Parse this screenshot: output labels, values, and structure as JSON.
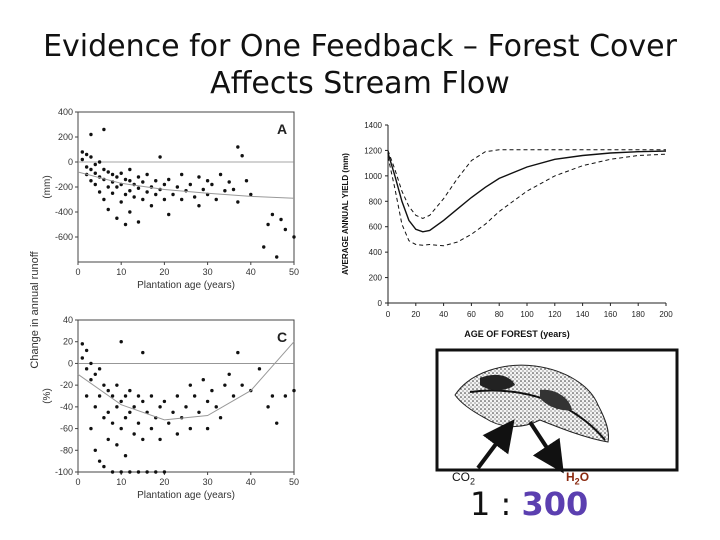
{
  "slide": {
    "title_line1": "Evidence for One Feedback – Forest Cover",
    "title_line2": "Affects Stream Flow"
  },
  "leaf": {
    "co2_label": "CO",
    "co2_sub": "2",
    "h2o_label_h": "H",
    "h2o_sub": "2",
    "h2o_label_o": "O",
    "ratio_left": "1 : ",
    "ratio_right": "300"
  },
  "chart_data": [
    {
      "type": "scatter",
      "panel_label": "A",
      "xlabel": "Plantation age (years)",
      "ylabel": "(mm)",
      "shared_ylabel": "Change in annual runoff",
      "xlim": [
        0,
        50
      ],
      "ylim": [
        -800,
        400
      ],
      "xticks": [
        0,
        10,
        20,
        30,
        40,
        50
      ],
      "yticks": [
        400,
        200,
        0,
        -200,
        -400,
        -600
      ],
      "trend": {
        "x": [
          0,
          10,
          20,
          30,
          40,
          50
        ],
        "y": [
          -80,
          -170,
          -220,
          -250,
          -275,
          -290
        ]
      },
      "points": [
        [
          1,
          80
        ],
        [
          1,
          20
        ],
        [
          2,
          60
        ],
        [
          2,
          -40
        ],
        [
          2,
          -100
        ],
        [
          3,
          40
        ],
        [
          3,
          -60
        ],
        [
          3,
          -150
        ],
        [
          4,
          -20
        ],
        [
          4,
          -90
        ],
        [
          4,
          -180
        ],
        [
          5,
          0
        ],
        [
          5,
          -120
        ],
        [
          5,
          -240
        ],
        [
          6,
          -60
        ],
        [
          6,
          -140
        ],
        [
          6,
          -300
        ],
        [
          7,
          -80
        ],
        [
          7,
          -200
        ],
        [
          7,
          -380
        ],
        [
          8,
          -100
        ],
        [
          8,
          -160
        ],
        [
          8,
          -250
        ],
        [
          9,
          -120
        ],
        [
          9,
          -200
        ],
        [
          9,
          -450
        ],
        [
          10,
          -90
        ],
        [
          10,
          -180
        ],
        [
          10,
          -320
        ],
        [
          11,
          -140
        ],
        [
          11,
          -260
        ],
        [
          11,
          -500
        ],
        [
          12,
          -60
        ],
        [
          12,
          -150
        ],
        [
          12,
          -230
        ],
        [
          12,
          -400
        ],
        [
          13,
          -180
        ],
        [
          13,
          -280
        ],
        [
          14,
          -120
        ],
        [
          14,
          -210
        ],
        [
          14,
          -480
        ],
        [
          15,
          -160
        ],
        [
          15,
          -300
        ],
        [
          16,
          -100
        ],
        [
          16,
          -240
        ],
        [
          17,
          -200
        ],
        [
          17,
          -350
        ],
        [
          18,
          -150
        ],
        [
          18,
          -260
        ],
        [
          19,
          40
        ],
        [
          19,
          -220
        ],
        [
          20,
          -180
        ],
        [
          20,
          -300
        ],
        [
          21,
          -140
        ],
        [
          21,
          -420
        ],
        [
          22,
          -260
        ],
        [
          23,
          -200
        ],
        [
          24,
          -100
        ],
        [
          24,
          -300
        ],
        [
          25,
          -230
        ],
        [
          26,
          -180
        ],
        [
          27,
          -280
        ],
        [
          28,
          -120
        ],
        [
          28,
          -350
        ],
        [
          29,
          -220
        ],
        [
          30,
          -150
        ],
        [
          30,
          -260
        ],
        [
          31,
          -180
        ],
        [
          32,
          -300
        ],
        [
          33,
          -100
        ],
        [
          34,
          -230
        ],
        [
          35,
          -160
        ],
        [
          36,
          -220
        ],
        [
          37,
          -320
        ],
        [
          37,
          120
        ],
        [
          38,
          50
        ],
        [
          39,
          -150
        ],
        [
          40,
          -260
        ],
        [
          43,
          -680
        ],
        [
          44,
          -500
        ],
        [
          45,
          -420
        ],
        [
          46,
          -760
        ],
        [
          47,
          -460
        ],
        [
          48,
          -540
        ],
        [
          50,
          -600
        ],
        [
          6,
          260
        ],
        [
          3,
          220
        ]
      ]
    },
    {
      "type": "scatter",
      "panel_label": "C",
      "xlabel": "Plantation age (years)",
      "ylabel": "(%)",
      "xlim": [
        0,
        50
      ],
      "ylim": [
        -100,
        40
      ],
      "xticks": [
        0,
        10,
        20,
        30,
        40,
        50
      ],
      "yticks": [
        40,
        20,
        0,
        -20,
        -40,
        -60,
        -80,
        -100
      ],
      "trend": {
        "x": [
          0,
          10,
          20,
          30,
          40,
          50
        ],
        "y": [
          -10,
          -38,
          -52,
          -48,
          -25,
          20
        ]
      },
      "points": [
        [
          1,
          18
        ],
        [
          1,
          5
        ],
        [
          2,
          12
        ],
        [
          2,
          -5
        ],
        [
          2,
          -30
        ],
        [
          3,
          0
        ],
        [
          3,
          -15
        ],
        [
          3,
          -60
        ],
        [
          4,
          -10
        ],
        [
          4,
          -40
        ],
        [
          4,
          -80
        ],
        [
          5,
          -5
        ],
        [
          5,
          -30
        ],
        [
          5,
          -90
        ],
        [
          6,
          -20
        ],
        [
          6,
          -50
        ],
        [
          6,
          -95
        ],
        [
          7,
          -25
        ],
        [
          7,
          -45
        ],
        [
          7,
          -70
        ],
        [
          8,
          -30
        ],
        [
          8,
          -55
        ],
        [
          8,
          -100
        ],
        [
          9,
          -20
        ],
        [
          9,
          -40
        ],
        [
          9,
          -75
        ],
        [
          10,
          -35
        ],
        [
          10,
          -60
        ],
        [
          10,
          -100
        ],
        [
          11,
          -30
        ],
        [
          11,
          -50
        ],
        [
          11,
          -85
        ],
        [
          12,
          -25
        ],
        [
          12,
          -45
        ],
        [
          12,
          -100
        ],
        [
          13,
          -40
        ],
        [
          13,
          -65
        ],
        [
          14,
          -30
        ],
        [
          14,
          -55
        ],
        [
          14,
          -100
        ],
        [
          15,
          -35
        ],
        [
          15,
          -70
        ],
        [
          16,
          -45
        ],
        [
          16,
          -100
        ],
        [
          17,
          -30
        ],
        [
          17,
          -60
        ],
        [
          18,
          -50
        ],
        [
          18,
          -100
        ],
        [
          19,
          -40
        ],
        [
          19,
          -70
        ],
        [
          20,
          -35
        ],
        [
          20,
          -100
        ],
        [
          21,
          -55
        ],
        [
          22,
          -45
        ],
        [
          23,
          -30
        ],
        [
          23,
          -65
        ],
        [
          24,
          -50
        ],
        [
          25,
          -40
        ],
        [
          26,
          -20
        ],
        [
          26,
          -60
        ],
        [
          27,
          -30
        ],
        [
          28,
          -45
        ],
        [
          29,
          -15
        ],
        [
          30,
          -35
        ],
        [
          30,
          -60
        ],
        [
          31,
          -25
        ],
        [
          32,
          -40
        ],
        [
          33,
          -50
        ],
        [
          34,
          -20
        ],
        [
          35,
          -10
        ],
        [
          36,
          -30
        ],
        [
          37,
          10
        ],
        [
          38,
          -20
        ],
        [
          40,
          -25
        ],
        [
          42,
          -5
        ],
        [
          44,
          -40
        ],
        [
          45,
          -30
        ],
        [
          46,
          -55
        ],
        [
          48,
          -30
        ],
        [
          50,
          -25
        ],
        [
          10,
          20
        ],
        [
          15,
          10
        ]
      ]
    },
    {
      "type": "line",
      "xlabel": "AGE OF FOREST (years)",
      "ylabel": "AVERAGE ANNUAL YIELD (mm)",
      "xlim": [
        0,
        200
      ],
      "ylim": [
        0,
        1400
      ],
      "xticks": [
        0,
        20,
        40,
        60,
        80,
        100,
        120,
        140,
        160,
        180,
        200
      ],
      "yticks": [
        0,
        200,
        400,
        600,
        800,
        1000,
        1200,
        1400
      ],
      "series": [
        {
          "style": "solid",
          "x": [
            0,
            5,
            10,
            15,
            20,
            25,
            30,
            40,
            50,
            60,
            70,
            80,
            100,
            120,
            140,
            160,
            180,
            200
          ],
          "y": [
            1180,
            1000,
            800,
            650,
            580,
            560,
            570,
            650,
            740,
            830,
            910,
            980,
            1070,
            1130,
            1160,
            1180,
            1190,
            1195
          ]
        },
        {
          "style": "dashed",
          "x": [
            0,
            5,
            10,
            15,
            20,
            25,
            30,
            40,
            50,
            60,
            70,
            80,
            100,
            120,
            140,
            160,
            180,
            200
          ],
          "y": [
            1200,
            1050,
            880,
            760,
            690,
            665,
            690,
            820,
            980,
            1120,
            1190,
            1205,
            1205,
            1205,
            1205,
            1205,
            1205,
            1205
          ]
        },
        {
          "style": "dashed",
          "x": [
            0,
            5,
            10,
            15,
            20,
            25,
            30,
            40,
            50,
            60,
            70,
            80,
            100,
            120,
            140,
            160,
            180,
            200
          ],
          "y": [
            1150,
            900,
            620,
            490,
            460,
            455,
            460,
            450,
            480,
            540,
            620,
            720,
            880,
            1000,
            1080,
            1130,
            1160,
            1170
          ]
        }
      ]
    }
  ]
}
